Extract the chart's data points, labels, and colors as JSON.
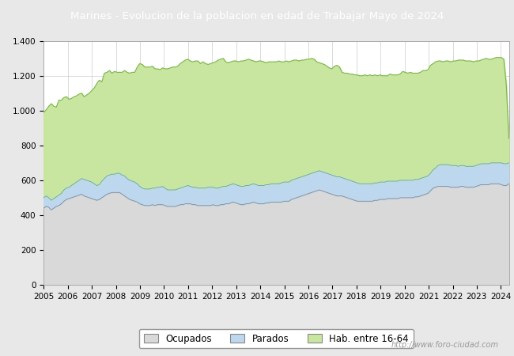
{
  "title": "Marines - Evolucion de la poblacion en edad de Trabajar Mayo de 2024",
  "title_bg_color": "#4472c4",
  "title_text_color": "white",
  "ylim": [
    0,
    1400
  ],
  "yticks": [
    0,
    200,
    400,
    600,
    800,
    1000,
    1200,
    1400
  ],
  "ytick_labels": [
    "0",
    "200",
    "400",
    "600",
    "800",
    "1.000",
    "1.200",
    "1.400"
  ],
  "xmin": 2005,
  "xmax": 2024,
  "xtick_labels": [
    "2005",
    "2006",
    "2007",
    "2008",
    "2009",
    "2010",
    "2011",
    "2012",
    "2013",
    "2014",
    "2015",
    "2016",
    "2017",
    "2018",
    "2019",
    "2020",
    "2021",
    "2022",
    "2023",
    "2024"
  ],
  "legend_labels": [
    "Ocupados",
    "Parados",
    "Hab. entre 16-64"
  ],
  "color_ocupados": "#d9d9d9",
  "color_parados": "#bdd7ee",
  "color_hab": "#c8e6a0",
  "line_color_ocupados": "#888888",
  "line_color_parados": "#5a9fd4",
  "line_color_hab": "#7ab648",
  "watermark": "http://www.foro-ciudad.com",
  "fig_bg_color": "#e8e8e8",
  "plot_bg_color": "white",
  "hab_data": [
    990,
    1005,
    1025,
    1040,
    1025,
    1020,
    1060,
    1060,
    1075,
    1080,
    1065,
    1070,
    1080,
    1085,
    1095,
    1100,
    1080,
    1090,
    1100,
    1115,
    1130,
    1155,
    1175,
    1165,
    1215,
    1220,
    1230,
    1215,
    1225,
    1220,
    1220,
    1220,
    1230,
    1220,
    1215,
    1220,
    1220,
    1250,
    1270,
    1265,
    1250,
    1250,
    1250,
    1255,
    1240,
    1240,
    1235,
    1245,
    1240,
    1240,
    1245,
    1250,
    1250,
    1255,
    1270,
    1280,
    1290,
    1295,
    1285,
    1280,
    1285,
    1285,
    1270,
    1280,
    1270,
    1265,
    1270,
    1275,
    1280,
    1290,
    1295,
    1300,
    1280,
    1275,
    1280,
    1285,
    1285,
    1280,
    1285,
    1285,
    1290,
    1295,
    1290,
    1285,
    1280,
    1285,
    1285,
    1280,
    1275,
    1280,
    1280,
    1280,
    1280,
    1285,
    1280,
    1280,
    1285,
    1280,
    1285,
    1290,
    1290,
    1285,
    1290,
    1290,
    1295,
    1295,
    1300,
    1295,
    1280,
    1275,
    1270,
    1265,
    1255,
    1245,
    1240,
    1255,
    1260,
    1250,
    1220,
    1215,
    1215,
    1210,
    1210,
    1205,
    1205,
    1200,
    1200,
    1205,
    1200,
    1205,
    1200,
    1205,
    1200,
    1205,
    1200,
    1200,
    1200,
    1210,
    1205,
    1205,
    1205,
    1210,
    1225,
    1220,
    1215,
    1220,
    1215,
    1215,
    1215,
    1220,
    1230,
    1230,
    1235,
    1260,
    1270,
    1280,
    1285,
    1285,
    1280,
    1285,
    1285,
    1280,
    1285,
    1285,
    1290,
    1290,
    1290,
    1285,
    1285,
    1285,
    1280,
    1285,
    1285,
    1290,
    1295,
    1300,
    1295,
    1295,
    1300,
    1305,
    1305,
    1305,
    1295,
    1145,
    840
  ],
  "parados_data": [
    500,
    510,
    500,
    485,
    495,
    505,
    515,
    525,
    545,
    555,
    560,
    570,
    580,
    590,
    600,
    610,
    605,
    600,
    595,
    590,
    580,
    570,
    575,
    595,
    610,
    625,
    630,
    635,
    635,
    640,
    640,
    630,
    625,
    610,
    600,
    595,
    590,
    580,
    565,
    555,
    550,
    550,
    550,
    555,
    555,
    560,
    560,
    565,
    555,
    545,
    545,
    545,
    545,
    550,
    555,
    560,
    565,
    570,
    565,
    560,
    560,
    555,
    555,
    555,
    555,
    560,
    560,
    560,
    555,
    555,
    560,
    565,
    565,
    570,
    575,
    580,
    575,
    570,
    565,
    565,
    570,
    570,
    575,
    580,
    575,
    570,
    570,
    570,
    575,
    575,
    580,
    580,
    580,
    580,
    585,
    590,
    590,
    590,
    600,
    605,
    610,
    615,
    620,
    625,
    630,
    635,
    640,
    645,
    650,
    655,
    650,
    645,
    640,
    635,
    630,
    625,
    620,
    620,
    615,
    610,
    605,
    600,
    595,
    590,
    585,
    580,
    580,
    580,
    580,
    580,
    580,
    585,
    585,
    590,
    590,
    590,
    595,
    595,
    595,
    595,
    595,
    600,
    600,
    600,
    600,
    600,
    600,
    605,
    605,
    610,
    615,
    620,
    625,
    640,
    660,
    670,
    685,
    690,
    690,
    690,
    690,
    685,
    685,
    685,
    680,
    685,
    685,
    680,
    680,
    680,
    680,
    685,
    690,
    695,
    695,
    695,
    695,
    700,
    700,
    700,
    700,
    700,
    695,
    695,
    700
  ],
  "ocupados_data": [
    440,
    450,
    445,
    430,
    440,
    450,
    455,
    465,
    480,
    490,
    495,
    500,
    505,
    510,
    515,
    520,
    510,
    505,
    500,
    495,
    490,
    485,
    490,
    500,
    510,
    520,
    525,
    530,
    530,
    530,
    530,
    520,
    510,
    500,
    490,
    485,
    480,
    475,
    465,
    460,
    455,
    455,
    455,
    460,
    455,
    460,
    460,
    460,
    455,
    450,
    450,
    450,
    450,
    455,
    460,
    460,
    465,
    465,
    465,
    460,
    460,
    455,
    455,
    455,
    455,
    455,
    455,
    460,
    455,
    455,
    460,
    460,
    465,
    465,
    470,
    475,
    470,
    465,
    460,
    460,
    465,
    465,
    470,
    475,
    470,
    465,
    465,
    465,
    470,
    470,
    475,
    475,
    475,
    475,
    475,
    480,
    480,
    480,
    490,
    495,
    500,
    505,
    510,
    515,
    520,
    525,
    530,
    535,
    540,
    545,
    540,
    535,
    530,
    525,
    520,
    515,
    510,
    510,
    510,
    505,
    500,
    495,
    490,
    485,
    480,
    480,
    480,
    480,
    480,
    480,
    480,
    485,
    485,
    490,
    490,
    490,
    495,
    495,
    495,
    495,
    495,
    500,
    500,
    500,
    500,
    500,
    500,
    505,
    505,
    510,
    515,
    520,
    525,
    540,
    555,
    560,
    565,
    565,
    565,
    565,
    565,
    560,
    560,
    560,
    560,
    565,
    565,
    560,
    560,
    560,
    560,
    565,
    570,
    575,
    575,
    575,
    575,
    580,
    580,
    580,
    580,
    575,
    570,
    570,
    580
  ],
  "n_points": 185
}
